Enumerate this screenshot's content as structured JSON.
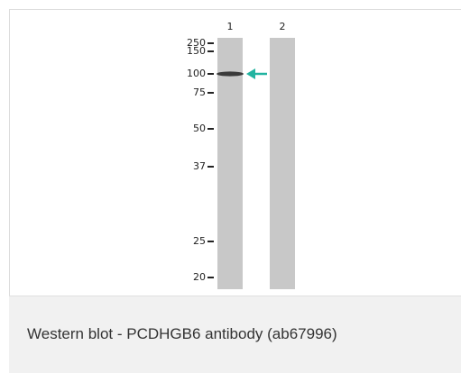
{
  "figure": {
    "lanes": [
      "1",
      "2"
    ],
    "markers": [
      250,
      150,
      100,
      75,
      50,
      37,
      25,
      20
    ]
  },
  "caption": "Western blot - PCDHGB6 antibody (ab67996)"
}
